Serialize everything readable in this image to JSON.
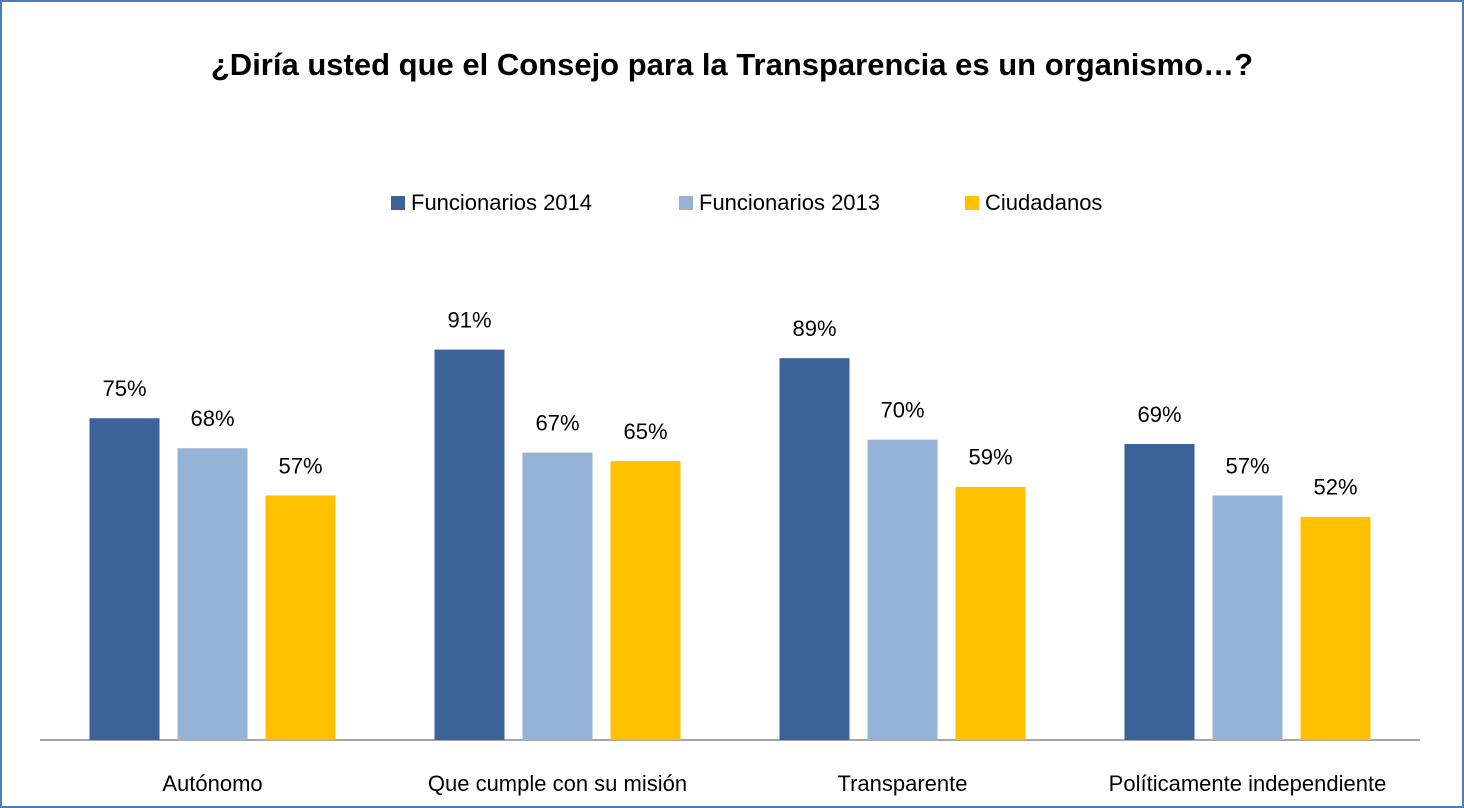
{
  "chart_data": {
    "type": "bar",
    "title": "¿Diría usted que el Consejo para la Transparencia es un organismo…?",
    "categories": [
      "Autónomo",
      "Que cumple con su misión",
      "Transparente",
      "Políticamente independiente"
    ],
    "series": [
      {
        "name": "Funcionarios 2014",
        "color": "#3c6399",
        "values": [
          75,
          91,
          89,
          69
        ],
        "value_labels": [
          "75%",
          "91%",
          "89%",
          "69%"
        ]
      },
      {
        "name": "Funcionarios 2013",
        "color": "#95b3d7",
        "values": [
          68,
          67,
          70,
          57
        ],
        "value_labels": [
          "68%",
          "67%",
          "70%",
          "57%"
        ]
      },
      {
        "name": "Ciudadanos",
        "color": "#ffc000",
        "values": [
          57,
          65,
          59,
          52
        ],
        "value_labels": [
          "57%",
          "65%",
          "59%",
          "52%"
        ]
      }
    ],
    "legend": "top"
  }
}
